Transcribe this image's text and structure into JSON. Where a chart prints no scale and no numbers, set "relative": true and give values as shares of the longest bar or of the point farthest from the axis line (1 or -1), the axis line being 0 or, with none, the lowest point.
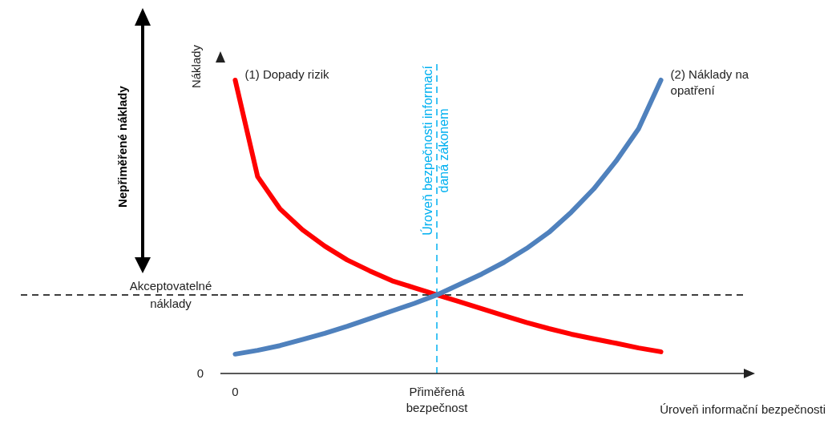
{
  "chart_data": {
    "type": "line",
    "relative": true,
    "xlabel": "Úroveň informační bezpečnosti",
    "ylabel": "Náklady",
    "categories": [
      "0",
      null,
      null,
      null,
      null,
      null,
      null,
      null,
      null,
      "Přiměřená bezpečnost",
      null,
      null,
      null,
      null,
      null,
      null,
      null,
      null,
      null,
      null
    ],
    "series": [
      {
        "name": "(1) Dopady rizik",
        "color": "#ff0000",
        "values": [
          1.0,
          0.671,
          0.561,
          0.49,
          0.434,
          0.387,
          0.35,
          0.316,
          0.292,
          0.268,
          0.245,
          0.221,
          0.197,
          0.174,
          0.153,
          0.134,
          0.118,
          0.103,
          0.087,
          0.074
        ]
      },
      {
        "name": "(2) Náklady na opatření",
        "color": "#4f81bd",
        "values": [
          0.066,
          0.079,
          0.095,
          0.116,
          0.137,
          0.161,
          0.187,
          0.213,
          0.239,
          0.268,
          0.303,
          0.339,
          0.379,
          0.426,
          0.481,
          0.55,
          0.629,
          0.724,
          0.834,
          1.0
        ]
      }
    ],
    "ref_lines": [
      {
        "axis": "y",
        "value": 0.268,
        "label": "Akceptovatelné náklady",
        "color": "#000000",
        "line_style": "dashed"
      },
      {
        "axis": "x",
        "value": "Přiměřená bezpečnost",
        "label": "Úroveň bezpečnosti informací daná zákonem",
        "color": "#00b0f0",
        "line_style": "dashed"
      }
    ],
    "annotations": [
      "Nepřiměřené náklady",
      "0"
    ],
    "legend": false,
    "grid": false,
    "marker": "none",
    "line_style": "solid"
  }
}
